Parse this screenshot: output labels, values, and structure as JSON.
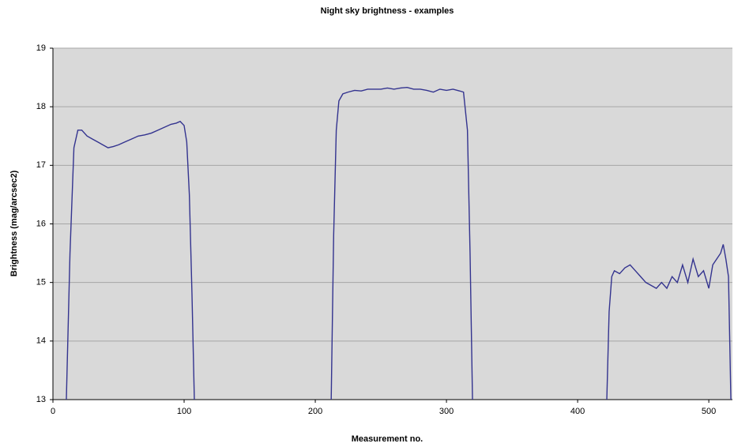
{
  "chart_data": {
    "type": "line",
    "title": "Night sky brightness - examples",
    "x_label": "Measurement no.",
    "y_label": "Brightness (mag/arcsec2)",
    "color": "#33338f",
    "grid": true,
    "xlim": [
      0,
      518
    ],
    "xticks": [
      0,
      100,
      200,
      300,
      400,
      500
    ],
    "ylim": [
      13,
      19
    ],
    "yticks": [
      13,
      14,
      15,
      16,
      17,
      18,
      19
    ],
    "x": [
      10,
      13,
      16,
      19,
      22,
      26,
      30,
      34,
      38,
      42,
      46,
      50,
      55,
      60,
      65,
      70,
      75,
      80,
      85,
      90,
      94,
      97,
      100,
      102,
      104,
      106,
      108,
      160,
      212,
      214,
      216,
      218,
      221,
      225,
      230,
      235,
      240,
      245,
      250,
      255,
      260,
      265,
      270,
      275,
      280,
      285,
      290,
      295,
      300,
      305,
      310,
      313,
      316,
      318,
      320,
      370,
      422,
      424,
      426,
      428,
      432,
      436,
      440,
      444,
      448,
      452,
      456,
      460,
      464,
      468,
      472,
      476,
      480,
      484,
      488,
      492,
      496,
      500,
      503,
      506,
      509,
      511,
      513,
      515,
      517
    ],
    "values": [
      12.8,
      15.5,
      17.3,
      17.6,
      17.6,
      17.5,
      17.45,
      17.4,
      17.35,
      17.3,
      17.32,
      17.35,
      17.4,
      17.45,
      17.5,
      17.52,
      17.55,
      17.6,
      17.65,
      17.7,
      17.72,
      17.75,
      17.68,
      17.4,
      16.5,
      14.8,
      12.8,
      null,
      12.8,
      15.8,
      17.6,
      18.1,
      18.22,
      18.25,
      18.28,
      18.27,
      18.3,
      18.3,
      18.3,
      18.32,
      18.3,
      18.32,
      18.33,
      18.3,
      18.3,
      18.28,
      18.25,
      18.3,
      18.28,
      18.3,
      18.27,
      18.25,
      17.6,
      15.5,
      12.8,
      null,
      12.8,
      14.5,
      15.1,
      15.2,
      15.15,
      15.25,
      15.3,
      15.2,
      15.1,
      15.0,
      14.95,
      14.9,
      15.0,
      14.9,
      15.1,
      15.0,
      15.3,
      15.0,
      15.4,
      15.1,
      15.2,
      14.9,
      15.3,
      15.4,
      15.5,
      15.65,
      15.4,
      15.1,
      12.8
    ]
  }
}
